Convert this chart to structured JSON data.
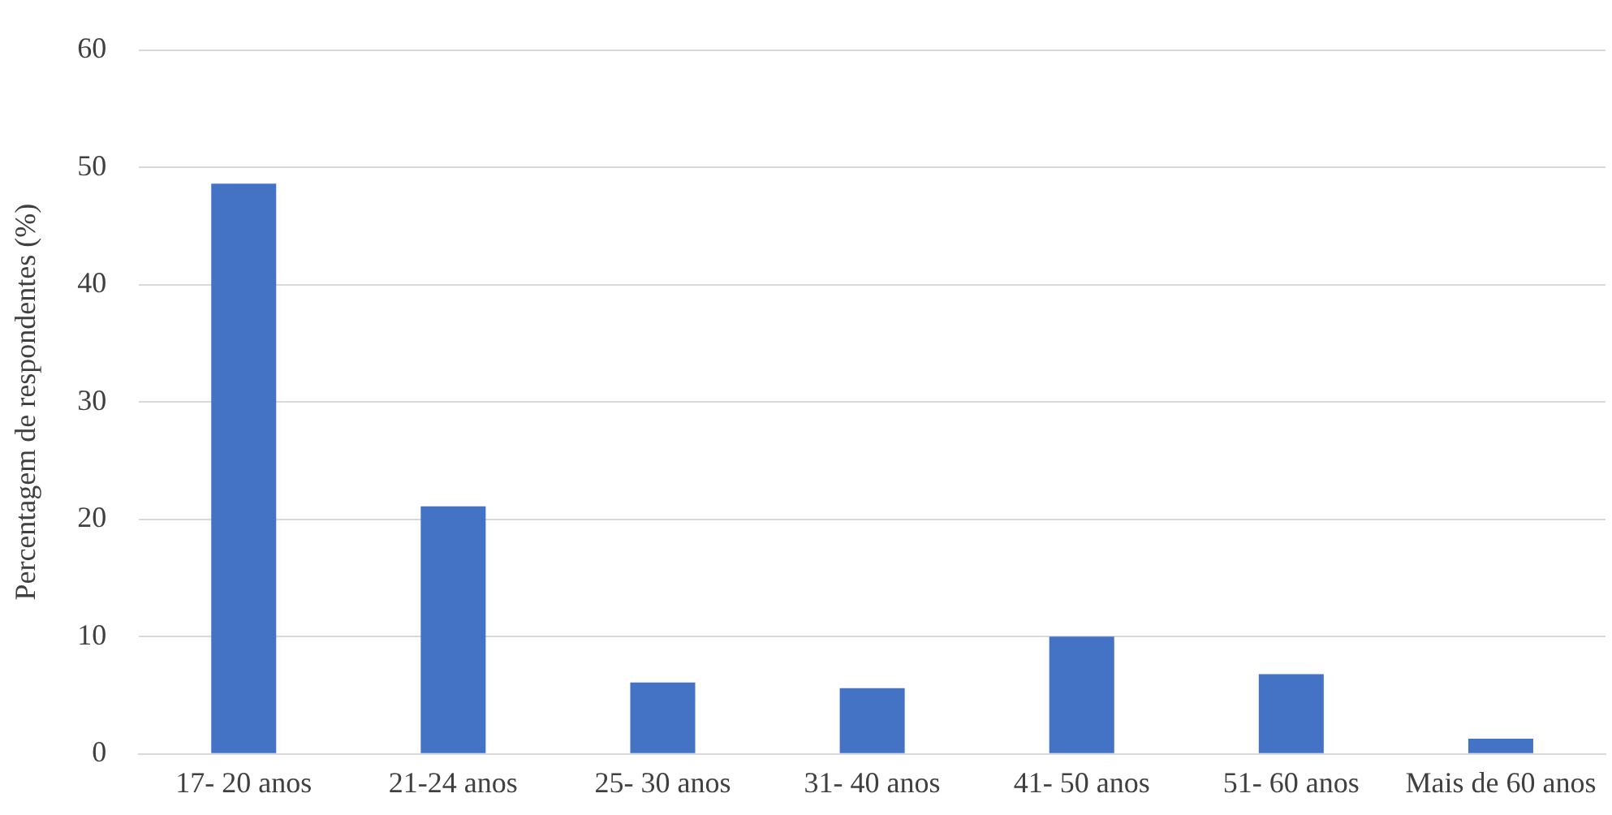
{
  "chart_data": {
    "type": "bar",
    "ylabel": "Percentagem de respondentes (%)",
    "categories": [
      "17- 20 anos",
      "21-24 anos",
      "25- 30 anos",
      "31- 40 anos",
      "41- 50 anos",
      "51- 60 anos",
      "Mais de 60 anos"
    ],
    "values": [
      48.6,
      21.1,
      6.1,
      5.6,
      10.0,
      6.8,
      1.3
    ],
    "color": "#4472c4",
    "ylim": [
      0,
      60
    ],
    "yticks": [
      0,
      10,
      20,
      30,
      40,
      50,
      60
    ],
    "grid": "y"
  }
}
